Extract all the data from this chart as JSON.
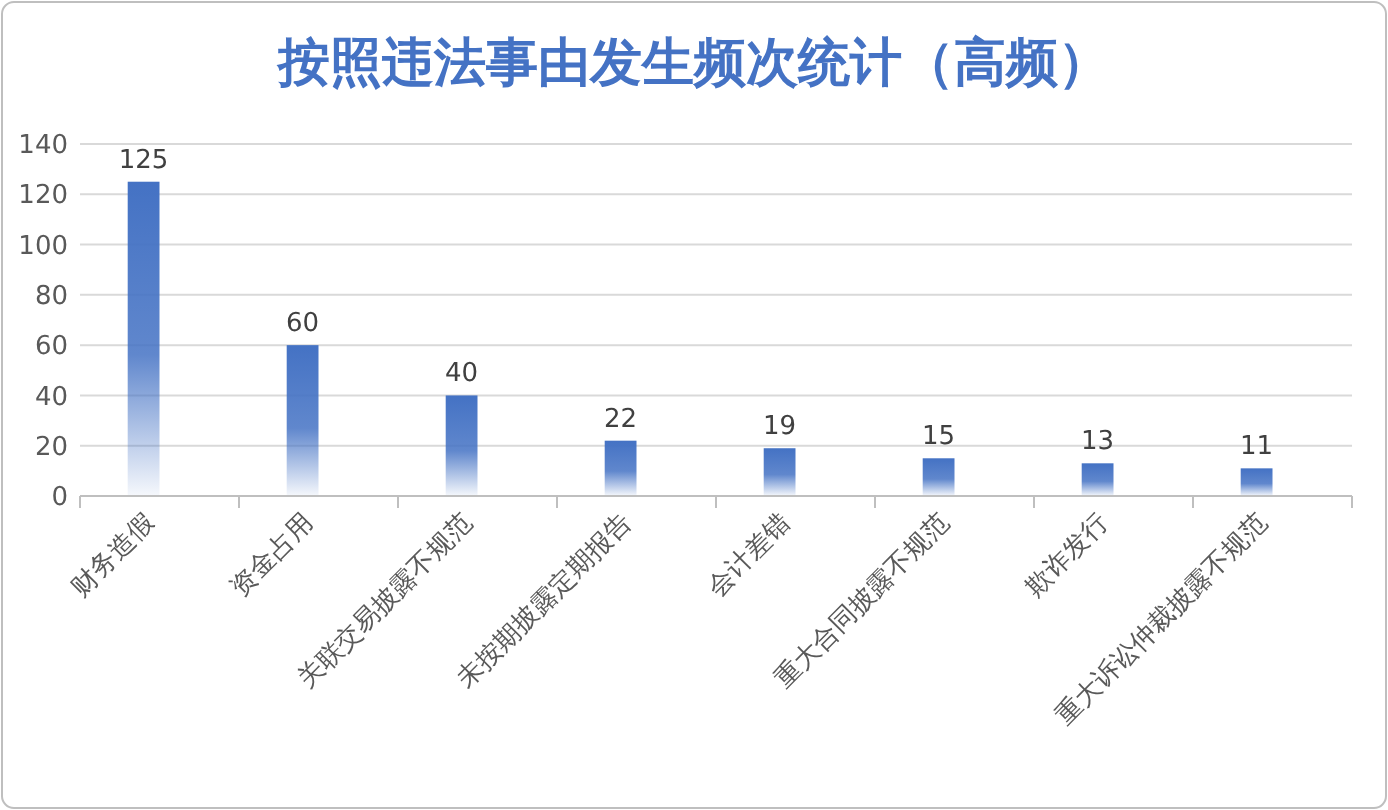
{
  "chart_data": {
    "type": "bar",
    "title": "按照违法事由发生频次统计（高频）",
    "categories": [
      "财务造假",
      "资金占用",
      "关联交易披露不规范",
      "未按期披露定期报告",
      "会计差错",
      "重大合同披露不规范",
      "欺诈发行",
      "重大诉讼仲裁披露不规范"
    ],
    "values": [
      125,
      60,
      40,
      22,
      19,
      15,
      13,
      11
    ],
    "color": "#4472c4",
    "ylim": [
      0,
      140
    ],
    "yticks": [
      0,
      20,
      40,
      60,
      80,
      100,
      120,
      140
    ],
    "grid": "y",
    "data_labels": true
  }
}
